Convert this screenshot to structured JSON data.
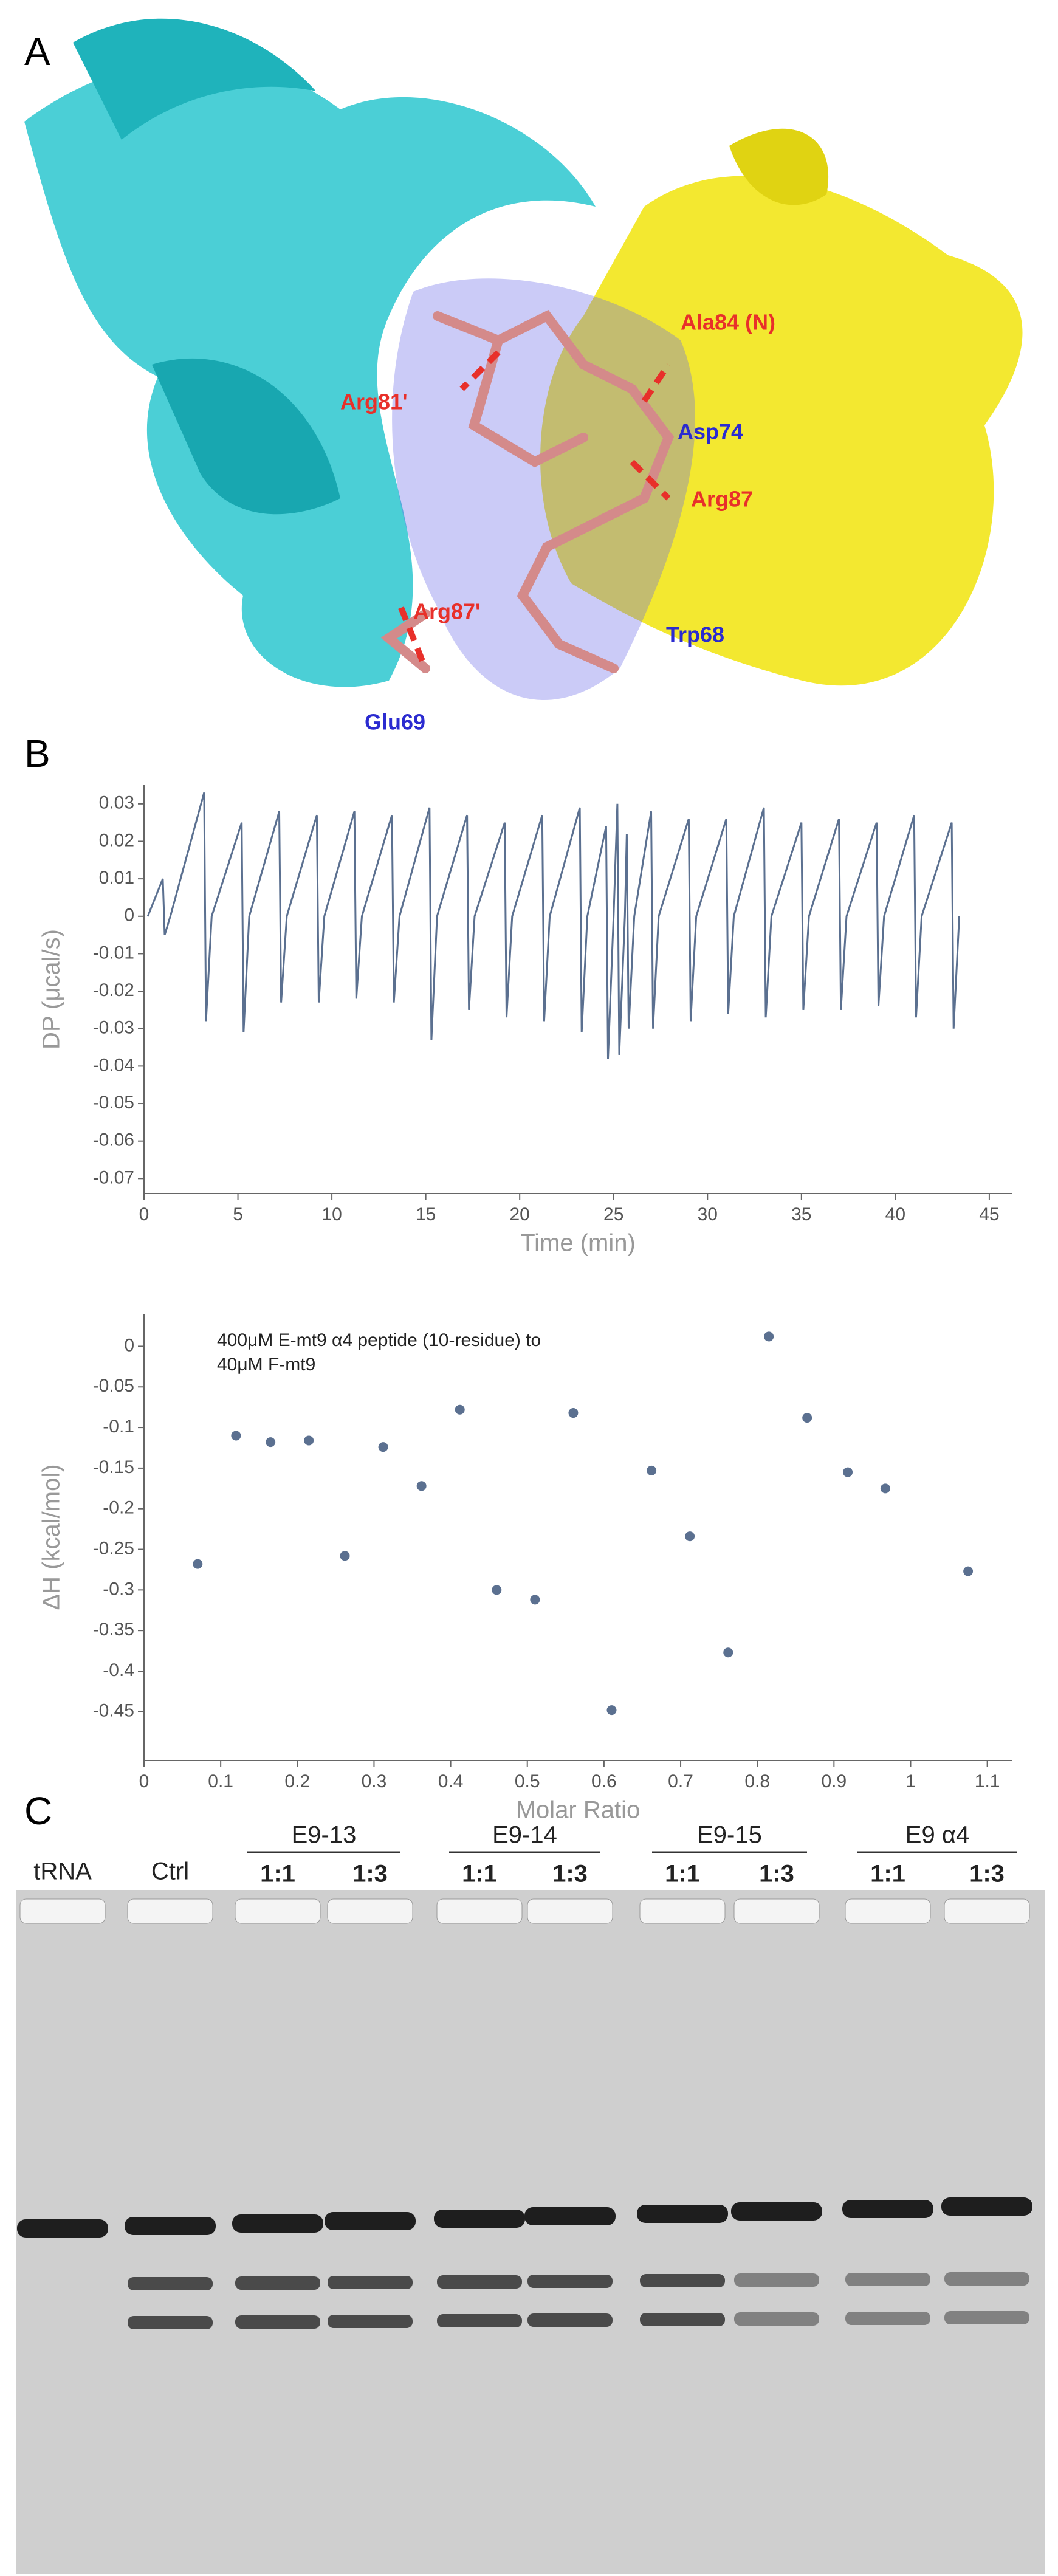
{
  "panel_labels": [
    "A",
    "B",
    "C"
  ],
  "structure_labels": [
    {
      "text": "Ala84 (N)",
      "color": "#e8302a"
    },
    {
      "text": "Arg81'",
      "color": "#e8302a"
    },
    {
      "text": "Asp74",
      "color": "#2b2bd0"
    },
    {
      "text": "Arg87",
      "color": "#e8302a"
    },
    {
      "text": "Arg87'",
      "color": "#e8302a"
    },
    {
      "text": "Trp68",
      "color": "#2b2bd0"
    },
    {
      "text": "Glu69",
      "color": "#2b2bd0"
    }
  ],
  "chart_data": [
    {
      "type": "line",
      "ylabel": "DP (μcal/s)",
      "xlabel": "Time (min)",
      "color": "#5b7090",
      "xlim": [
        0,
        46.2
      ],
      "ylim": [
        -0.074,
        0.035
      ],
      "xticks": [
        0,
        5,
        10,
        15,
        20,
        25,
        30,
        35,
        40,
        45
      ],
      "yticks": [
        0.03,
        0.02,
        0.01,
        0,
        -0.01,
        -0.02,
        -0.03,
        -0.04,
        -0.05,
        -0.06,
        -0.07
      ],
      "x": [
        0.2,
        1.0,
        1.1,
        1.4,
        3.2,
        3.3,
        3.6,
        5.2,
        5.3,
        5.6,
        7.2,
        7.3,
        7.6,
        9.2,
        9.3,
        9.6,
        11.2,
        11.3,
        11.6,
        13.2,
        13.3,
        13.6,
        15.2,
        15.3,
        15.6,
        17.2,
        17.3,
        17.6,
        19.2,
        19.3,
        19.6,
        21.2,
        21.3,
        21.6,
        23.2,
        23.3,
        23.6,
        24.6,
        24.7,
        25.0,
        25.2,
        25.3,
        25.6,
        25.7,
        25.8,
        26.1,
        27.0,
        27.1,
        27.4,
        29.0,
        29.1,
        29.4,
        31.0,
        31.1,
        31.4,
        33.0,
        33.1,
        33.4,
        35.0,
        35.1,
        35.4,
        37.0,
        37.1,
        37.4,
        39.0,
        39.1,
        39.4,
        41.0,
        41.1,
        41.4,
        43.0,
        43.1,
        43.4
      ],
      "values": [
        0,
        0.01,
        -0.005,
        0,
        0.033,
        -0.028,
        0,
        0.025,
        -0.031,
        0,
        0.028,
        -0.023,
        0,
        0.027,
        -0.023,
        0,
        0.028,
        -0.022,
        0,
        0.027,
        -0.023,
        0,
        0.029,
        -0.033,
        0,
        0.027,
        -0.025,
        0,
        0.025,
        -0.027,
        0,
        0.027,
        -0.028,
        0,
        0.029,
        -0.031,
        0,
        0.024,
        -0.038,
        0,
        0.03,
        -0.037,
        0,
        0.022,
        -0.03,
        0,
        0.028,
        -0.03,
        0,
        0.026,
        -0.028,
        0,
        0.026,
        -0.026,
        0,
        0.029,
        -0.027,
        0,
        0.025,
        -0.025,
        0,
        0.026,
        -0.025,
        0,
        0.025,
        -0.024,
        0,
        0.027,
        -0.027,
        0,
        0.025,
        -0.03,
        0
      ]
    },
    {
      "type": "scatter",
      "ylabel": "ΔH (kcal/mol)",
      "xlabel": "Molar Ratio",
      "color": "#5b7090",
      "annotation": [
        "400μM E-mt9 α4 peptide (10-residue) to",
        "40μM F-mt9"
      ],
      "xlim": [
        0,
        1.132
      ],
      "ylim": [
        -0.51,
        0.04
      ],
      "xticks": [
        0,
        0.1,
        0.2,
        0.3,
        0.4,
        0.5,
        0.6,
        0.7,
        0.8,
        0.9,
        1,
        1.1
      ],
      "yticks": [
        0,
        -0.05,
        -0.1,
        -0.15,
        -0.2,
        -0.25,
        -0.3,
        -0.35,
        -0.4,
        -0.45
      ],
      "x": [
        0.07,
        0.12,
        0.165,
        0.215,
        0.262,
        0.312,
        0.362,
        0.412,
        0.46,
        0.51,
        0.56,
        0.61,
        0.662,
        0.712,
        0.762,
        0.815,
        0.865,
        0.918,
        0.967,
        1.075
      ],
      "values": [
        -0.268,
        -0.11,
        -0.118,
        -0.116,
        -0.258,
        -0.124,
        -0.172,
        -0.078,
        -0.3,
        -0.312,
        -0.082,
        -0.448,
        -0.153,
        -0.234,
        -0.377,
        0.012,
        -0.088,
        -0.155,
        -0.175,
        -0.277
      ]
    }
  ],
  "gel": {
    "lanes": [
      "tRNA",
      "Ctrl"
    ],
    "groups": [
      {
        "name": "E9-13",
        "ratios": [
          "1:1",
          "1:3"
        ]
      },
      {
        "name": "E9-14",
        "ratios": [
          "1:1",
          "1:3"
        ]
      },
      {
        "name": "E9-15",
        "ratios": [
          "1:1",
          "1:3"
        ]
      },
      {
        "name": "E9 α4",
        "ratios": [
          "1:1",
          "1:3"
        ]
      }
    ]
  }
}
